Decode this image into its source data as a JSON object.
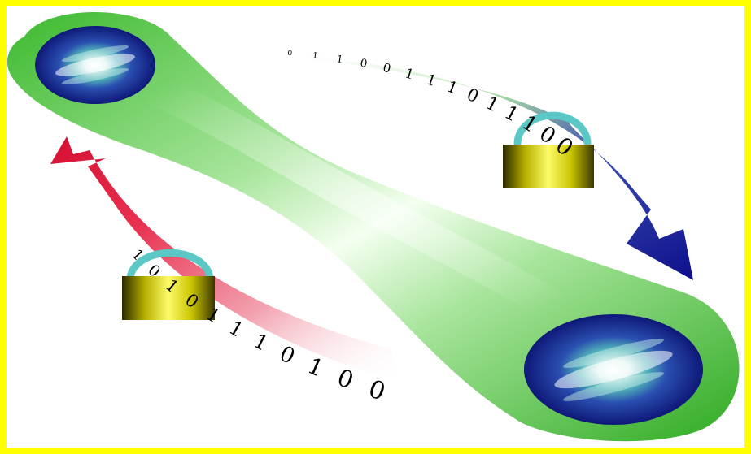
{
  "colors": {
    "frame": "#ffff00",
    "background": "#ffffff",
    "tube_edge": "#3cb92e",
    "tube_center": "#ffffff",
    "blue_arrow": "#17199a",
    "red_arrow": "#e01238",
    "lock_body": "#d9d400",
    "lock_shackle": "#5cc8c6",
    "node_outer": "#14208c",
    "node_core": "#ffffff"
  },
  "top_stream": {
    "label": "Binary stream flowing toward the lower-right node",
    "bits": [
      "0",
      "1",
      "1",
      "0",
      "0",
      "1",
      "1",
      "1",
      "0",
      "1",
      "1",
      "1",
      "0",
      "0"
    ]
  },
  "bottom_stream": {
    "label": "Binary stream flowing toward the upper-left node",
    "bits": [
      "1",
      "0",
      "1",
      "0",
      "1",
      "1",
      "1",
      "0",
      "1",
      "0",
      "0"
    ]
  },
  "icons": {
    "upper_node": "entangled-particle-icon",
    "lower_node": "entangled-particle-icon",
    "upper_lock": "padlock-icon",
    "lower_lock": "padlock-icon",
    "blue_arrow": "arrow-icon",
    "red_arrow": "arrow-icon"
  }
}
